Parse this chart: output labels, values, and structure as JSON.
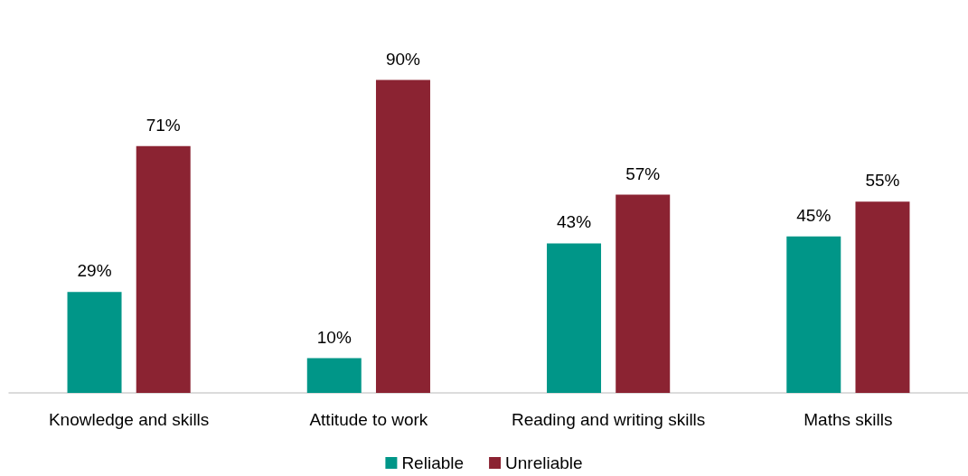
{
  "chart_data": {
    "type": "bar",
    "categories": [
      "Knowledge and skills",
      "Attitude to work",
      "Reading and writing skills",
      "Maths skills"
    ],
    "series": [
      {
        "name": "Reliable",
        "color": "#009688",
        "values": [
          29,
          10,
          43,
          45
        ],
        "value_labels": [
          "29%",
          "10%",
          "43%",
          "45%"
        ]
      },
      {
        "name": "Unreliable",
        "color": "#8b2332",
        "values": [
          71,
          90,
          57,
          55
        ],
        "value_labels": [
          "71%",
          "90%",
          "57%",
          "55%"
        ]
      }
    ],
    "legend": "bottom"
  }
}
